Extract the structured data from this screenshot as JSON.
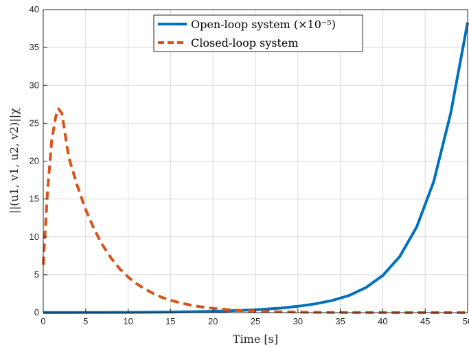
{
  "chart_data": {
    "type": "line",
    "xlabel": "Time [s]",
    "ylabel": "||(u1, v1, u2, v2)||χ",
    "xlim": [
      0,
      50
    ],
    "ylim": [
      0,
      40
    ],
    "x_ticks": [
      0,
      5,
      10,
      15,
      20,
      25,
      30,
      35,
      40,
      45,
      50
    ],
    "y_ticks": [
      0,
      5,
      10,
      15,
      20,
      25,
      30,
      35,
      40
    ],
    "grid": true,
    "legend_position": "top-center",
    "series": [
      {
        "name": "Open-loop system (×10⁻⁵)",
        "color": "#0072bd",
        "line_style": "solid",
        "x": [
          0,
          5,
          10,
          15,
          20,
          25,
          28,
          30,
          32,
          34,
          36,
          38,
          40,
          42,
          44,
          46,
          48,
          50
        ],
        "y": [
          0.01,
          0.02,
          0.04,
          0.08,
          0.17,
          0.37,
          0.6,
          0.83,
          1.15,
          1.6,
          2.25,
          3.3,
          4.9,
          7.4,
          11.3,
          17.3,
          26.3,
          38.3
        ]
      },
      {
        "name": "Closed-loop system",
        "color": "#d95319",
        "line_style": "dashed",
        "x": [
          0,
          0.5,
          1,
          1.5,
          1.8,
          2.2,
          3,
          4,
          5,
          6,
          7,
          8,
          9,
          10,
          11,
          12,
          13,
          14,
          15,
          16,
          17,
          18,
          19,
          20,
          21,
          22,
          23,
          24,
          25,
          26,
          27,
          28,
          30,
          32,
          35,
          40,
          45,
          50
        ],
        "y": [
          6.3,
          16.0,
          22.8,
          26.0,
          26.9,
          26.3,
          20.5,
          16.8,
          13.6,
          11.0,
          8.9,
          7.2,
          5.8,
          4.7,
          3.8,
          3.1,
          2.5,
          2.0,
          1.65,
          1.33,
          1.08,
          0.87,
          0.7,
          0.57,
          0.46,
          0.37,
          0.3,
          0.24,
          0.2,
          0.16,
          0.13,
          0.1,
          0.07,
          0.04,
          0.02,
          0.01,
          0.0,
          0.0
        ]
      }
    ]
  }
}
